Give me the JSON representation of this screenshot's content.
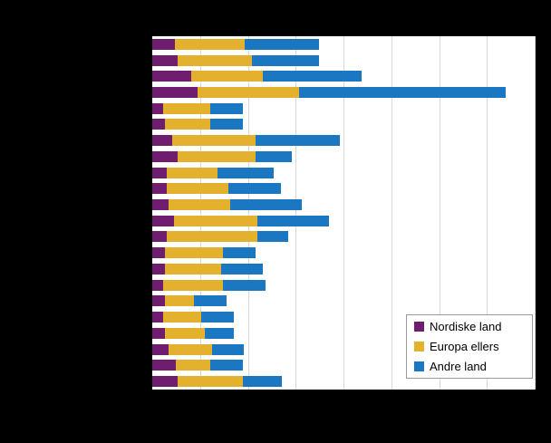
{
  "colors": {
    "background": "#000000",
    "plot_background": "#ffffff",
    "gridline": "#d9d9d9",
    "nordiske_land": "#6f1d6f",
    "europa_ellers": "#e3b12e",
    "andre_land": "#1c77c3"
  },
  "legend": {
    "items": [
      {
        "label": "Nordiske land",
        "color": "#6f1d6f"
      },
      {
        "label": "Europa ellers",
        "color": "#e3b12e"
      },
      {
        "label": "Andre land",
        "color": "#1c77c3"
      }
    ]
  },
  "chart_data": {
    "type": "bar",
    "orientation": "horizontal",
    "stacked": true,
    "title": "",
    "xlabel": "",
    "ylabel": "",
    "xlim": [
      0,
      80
    ],
    "grid_step": 10,
    "grid": true,
    "legend_position": "inside-bottom-right",
    "series": [
      {
        "name": "Nordiske land",
        "color": "#6f1d6f",
        "values": [
          4.7,
          5.3,
          8.2,
          9.5,
          2.3,
          2.7,
          4.2,
          5.3,
          3.0,
          3.0,
          3.4,
          4.6,
          3.0,
          2.7,
          2.7,
          2.3,
          2.7,
          2.3,
          2.7,
          3.4,
          4.9,
          5.3
        ]
      },
      {
        "name": "Europa ellers",
        "color": "#e3b12e",
        "values": [
          14.6,
          15.5,
          15.0,
          21.2,
          9.9,
          9.5,
          17.4,
          16.3,
          10.6,
          12.9,
          12.9,
          17.3,
          19.0,
          12.1,
          11.8,
          12.5,
          6.1,
          8.0,
          8.3,
          9.1,
          7.2,
          13.6
        ]
      },
      {
        "name": "Andre land",
        "color": "#1c77c3",
        "values": [
          15.5,
          14.0,
          20.5,
          43.2,
          6.8,
          6.8,
          17.6,
          7.6,
          11.8,
          11.0,
          15.0,
          15.0,
          6.4,
          6.8,
          8.7,
          8.9,
          6.8,
          6.8,
          6.1,
          6.6,
          6.8,
          8.3
        ]
      }
    ]
  }
}
